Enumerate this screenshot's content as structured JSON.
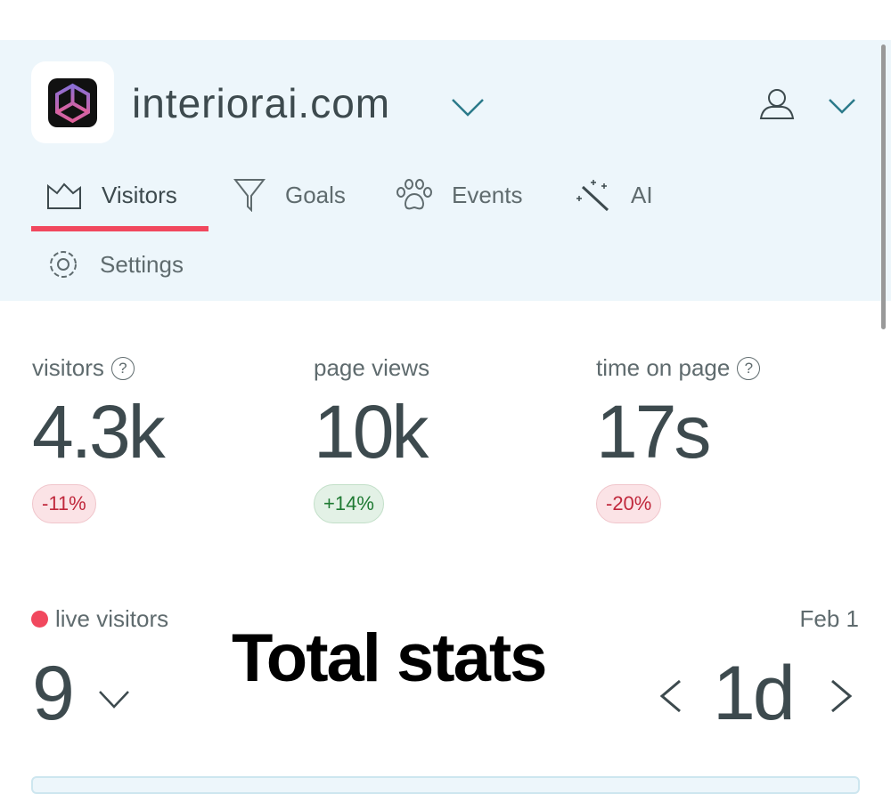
{
  "header": {
    "site": "interiorai.com",
    "tabs": [
      {
        "label": "Visitors",
        "icon": "chart-icon"
      },
      {
        "label": "Goals",
        "icon": "funnel-icon"
      },
      {
        "label": "Events",
        "icon": "paw-icon"
      },
      {
        "label": "AI",
        "icon": "magic-wand-icon"
      },
      {
        "label": "Settings",
        "icon": "gear-icon"
      }
    ]
  },
  "stats": [
    {
      "label": "visitors",
      "value": "4.3k",
      "change": "-11%"
    },
    {
      "label": "page views",
      "value": "10k",
      "change": "+14%"
    },
    {
      "label": "time on page",
      "value": "17s",
      "change": "-20%"
    }
  ],
  "live": {
    "label": "live visitors",
    "value": "9"
  },
  "overlay": "Total stats",
  "range": {
    "date": "Feb 1",
    "period": "1d"
  },
  "colors": {
    "accent": "#f1485e",
    "header_bg": "#edf6fb"
  }
}
